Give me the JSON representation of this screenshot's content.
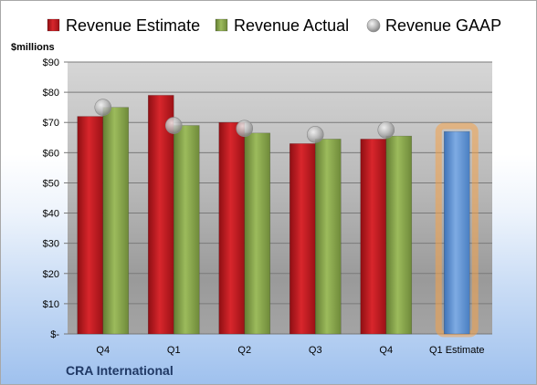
{
  "company": "CRA International",
  "chart_data": {
    "type": "bar",
    "ylabel": "$millions",
    "ylim": [
      0,
      90
    ],
    "y_ticks": [
      "$-",
      "$10",
      "$20",
      "$30",
      "$40",
      "$50",
      "$60",
      "$70",
      "$80",
      "$90"
    ],
    "y_tick_values": [
      0,
      10,
      20,
      30,
      40,
      50,
      60,
      70,
      80,
      90
    ],
    "categories": [
      "Q4",
      "Q1",
      "Q2",
      "Q3",
      "Q4",
      "Q1 Estimate"
    ],
    "grid": true,
    "legend_placement": "top",
    "series": [
      {
        "name": "Revenue Estimate",
        "kind": "bar",
        "color": "#c0161c",
        "values": [
          72,
          79,
          70,
          63,
          64.5,
          null
        ]
      },
      {
        "name": "Revenue Actual",
        "kind": "bar",
        "color": "#86a34a",
        "values": [
          75,
          69,
          66.5,
          64.5,
          65.5,
          null
        ]
      },
      {
        "name": "Revenue GAAP",
        "kind": "marker",
        "color": "#a9a9a9",
        "values": [
          75,
          69,
          68,
          66,
          67.5,
          null
        ]
      },
      {
        "name": "Q1 Estimate",
        "kind": "bar",
        "color": "#5f95d6",
        "highlight": "#f4a24a",
        "values": [
          null,
          null,
          null,
          null,
          null,
          67
        ]
      }
    ]
  }
}
